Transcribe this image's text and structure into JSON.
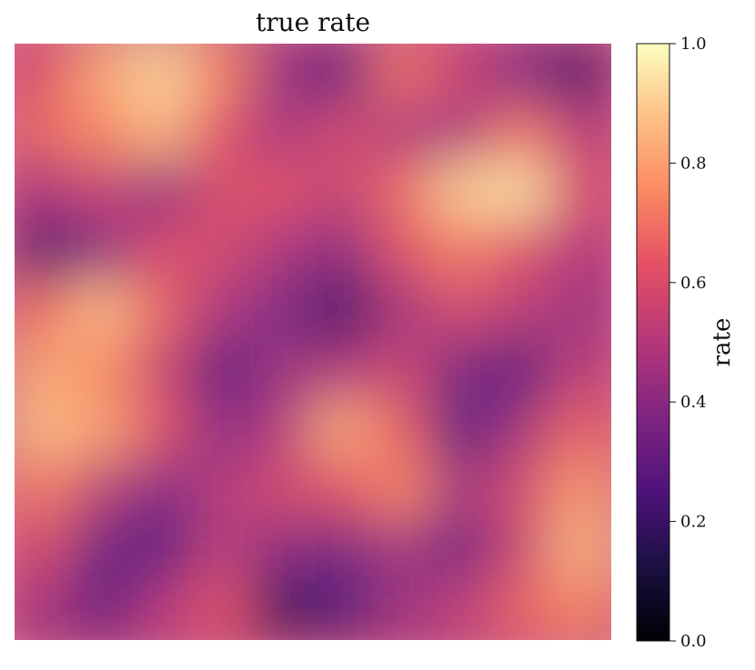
{
  "chart_data": {
    "type": "heatmap",
    "title": "true rate",
    "colormap": "magma",
    "vmin": 0.0,
    "vmax": 1.0,
    "colorbar": {
      "label": "rate",
      "ticks": [
        "0.0",
        "0.2",
        "0.4",
        "0.6",
        "0.8",
        "1.0"
      ],
      "tick_values": [
        0.0,
        0.2,
        0.4,
        0.6,
        0.8,
        1.0
      ]
    },
    "grid_rows": 10,
    "grid_cols": 10,
    "values": [
      [
        0.62,
        0.82,
        0.92,
        0.74,
        0.42,
        0.28,
        0.7,
        0.55,
        0.38,
        0.22
      ],
      [
        0.68,
        0.75,
        0.85,
        0.62,
        0.48,
        0.58,
        0.5,
        0.48,
        0.7,
        0.52
      ],
      [
        0.48,
        0.55,
        0.42,
        0.6,
        0.62,
        0.55,
        0.68,
        0.9,
        0.94,
        0.6
      ],
      [
        0.22,
        0.4,
        0.6,
        0.58,
        0.48,
        0.4,
        0.62,
        0.72,
        0.62,
        0.5
      ],
      [
        0.7,
        0.86,
        0.66,
        0.48,
        0.38,
        0.2,
        0.46,
        0.58,
        0.52,
        0.44
      ],
      [
        0.82,
        0.76,
        0.56,
        0.28,
        0.44,
        0.48,
        0.56,
        0.36,
        0.28,
        0.52
      ],
      [
        0.86,
        0.8,
        0.62,
        0.4,
        0.5,
        0.82,
        0.66,
        0.26,
        0.46,
        0.66
      ],
      [
        0.72,
        0.52,
        0.38,
        0.5,
        0.58,
        0.62,
        0.74,
        0.46,
        0.58,
        0.78
      ],
      [
        0.58,
        0.32,
        0.28,
        0.52,
        0.4,
        0.36,
        0.46,
        0.34,
        0.56,
        0.84
      ],
      [
        0.46,
        0.3,
        0.5,
        0.62,
        0.18,
        0.24,
        0.44,
        0.52,
        0.66,
        0.74
      ]
    ]
  }
}
